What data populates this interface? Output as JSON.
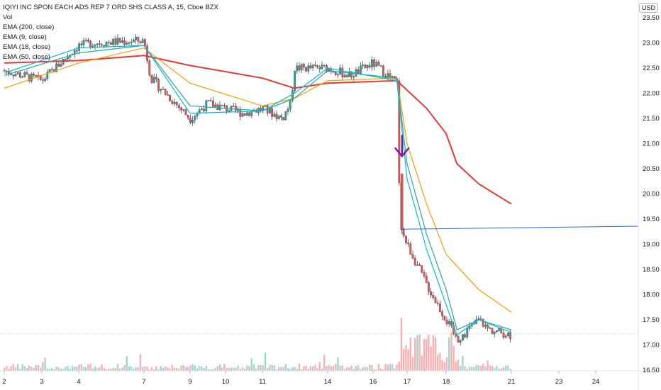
{
  "legend": {
    "title": "IQIYI INC SPON EACH ADS REP 7 ORD SHS CLASS A, 15, Cboe BZX",
    "vol": "Vol",
    "ema200": "EMA (200, close)",
    "ema9": "EMA (9, close)",
    "ema18": "EMA (18, close)",
    "ema50": "EMA (50, close)"
  },
  "currency_badge": "USD",
  "chart_data": {
    "type": "candlestick",
    "y_axis": {
      "ticks": [
        "23.50",
        "23.00",
        "22.50",
        "22.00",
        "21.50",
        "21.00",
        "20.50",
        "20.00",
        "19.50",
        "19.00",
        "18.50",
        "18.00",
        "17.50",
        "17.00",
        "16.50"
      ],
      "ylim": [
        16.45,
        23.55
      ]
    },
    "x_axis": {
      "ticks": [
        "2",
        "3",
        "4",
        "7",
        "9",
        "10",
        "11",
        "14",
        "16",
        "17",
        "18",
        "21",
        "23",
        "24"
      ]
    },
    "price_path": [
      [
        "2",
        22.45
      ],
      [
        "3",
        22.25
      ],
      [
        "4",
        22.95
      ],
      [
        "4.7",
        23.0
      ],
      [
        "7",
        23.05
      ],
      [
        "7.3",
        22.3
      ],
      [
        "9",
        21.5
      ],
      [
        "9.5",
        21.8
      ],
      [
        "10",
        21.7
      ],
      [
        "10.5",
        21.6
      ],
      [
        "11",
        21.7
      ],
      [
        "11.7",
        21.5
      ],
      [
        "12",
        21.8
      ],
      [
        "12.2",
        22.5
      ],
      [
        "14",
        22.5
      ],
      [
        "15",
        22.35
      ],
      [
        "16",
        22.6
      ],
      [
        "16.7",
        22.2
      ],
      [
        "16.8",
        19.3
      ],
      [
        "17",
        19.0
      ],
      [
        "17.5",
        18.2
      ],
      [
        "18",
        17.5
      ],
      [
        "18.5",
        17.1
      ],
      [
        "19.5",
        17.5
      ],
      [
        "20",
        17.3
      ],
      [
        "21",
        17.2
      ]
    ],
    "series": [
      {
        "name": "EMA (200, close)",
        "color": "#e53935",
        "points": [
          [
            "2",
            22.6
          ],
          [
            "4",
            22.65
          ],
          [
            "7",
            22.75
          ],
          [
            "9",
            22.55
          ],
          [
            "11",
            22.3
          ],
          [
            "12.2",
            22.1
          ],
          [
            "14",
            22.2
          ],
          [
            "16.7",
            22.25
          ],
          [
            "17.5",
            21.7
          ],
          [
            "18",
            21.2
          ],
          [
            "18.5",
            20.6
          ],
          [
            "19.5",
            20.2
          ],
          [
            "21",
            19.8
          ]
        ]
      },
      {
        "name": "EMA (50, close)",
        "color": "#ff9800",
        "points": [
          [
            "2",
            22.1
          ],
          [
            "4",
            22.6
          ],
          [
            "7",
            22.9
          ],
          [
            "9",
            22.2
          ],
          [
            "11",
            21.75
          ],
          [
            "12.2",
            21.9
          ],
          [
            "14",
            22.25
          ],
          [
            "16.7",
            22.3
          ],
          [
            "17",
            21.0
          ],
          [
            "17.5",
            19.8
          ],
          [
            "18",
            18.8
          ],
          [
            "19.5",
            18.1
          ],
          [
            "21",
            17.65
          ]
        ]
      },
      {
        "name": "EMA (18, close)",
        "color": "#26a69a",
        "points": [
          [
            "2",
            22.35
          ],
          [
            "4",
            22.8
          ],
          [
            "7",
            22.95
          ],
          [
            "9",
            21.75
          ],
          [
            "11",
            21.65
          ],
          [
            "12.2",
            21.9
          ],
          [
            "14",
            22.45
          ],
          [
            "16.7",
            22.3
          ],
          [
            "17",
            20.6
          ],
          [
            "17.5",
            19.2
          ],
          [
            "18",
            18.1
          ],
          [
            "18.5",
            17.3
          ],
          [
            "19.5",
            17.5
          ],
          [
            "21",
            17.3
          ]
        ]
      },
      {
        "name": "EMA (9, close)",
        "color": "#00bcd4",
        "points": [
          [
            "2",
            22.4
          ],
          [
            "4",
            22.9
          ],
          [
            "7",
            22.95
          ],
          [
            "9",
            21.6
          ],
          [
            "11",
            21.65
          ],
          [
            "12.2",
            22.0
          ],
          [
            "14",
            22.5
          ],
          [
            "16.7",
            22.25
          ],
          [
            "17",
            20.3
          ],
          [
            "17.5",
            18.9
          ],
          [
            "18",
            17.8
          ],
          [
            "18.5",
            17.2
          ],
          [
            "19.5",
            17.5
          ],
          [
            "21",
            17.25
          ]
        ]
      }
    ],
    "annotations": {
      "arrow": {
        "color": "#7b1fa2",
        "at": [
          "16.85",
          20.75
        ],
        "direction": "down"
      },
      "horizontal_line": {
        "color": "#2962ff",
        "from": [
          "16.85",
          19.3
        ],
        "to": [
          "25",
          19.36
        ]
      },
      "dotted_price_line": 17.22
    },
    "volume": {
      "spike_at": "16.85"
    },
    "colors": {
      "up": "#26a69a",
      "down": "#ef5350",
      "candle": "#434651"
    }
  }
}
